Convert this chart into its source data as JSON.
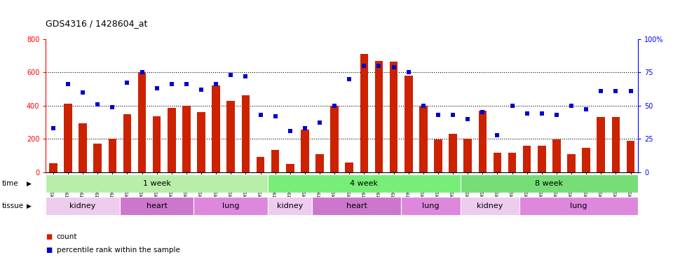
{
  "title": "GDS4316 / 1428604_at",
  "samples": [
    "GSM949115",
    "GSM949116",
    "GSM949117",
    "GSM949118",
    "GSM949119",
    "GSM949120",
    "GSM949121",
    "GSM949122",
    "GSM949123",
    "GSM949124",
    "GSM949125",
    "GSM949126",
    "GSM949127",
    "GSM949128",
    "GSM949129",
    "GSM949130",
    "GSM949131",
    "GSM949132",
    "GSM949133",
    "GSM949134",
    "GSM949135",
    "GSM949136",
    "GSM949137",
    "GSM949138",
    "GSM949139",
    "GSM949140",
    "GSM949141",
    "GSM949142",
    "GSM949143",
    "GSM949144",
    "GSM949145",
    "GSM949146",
    "GSM949147",
    "GSM949148",
    "GSM949149",
    "GSM949150",
    "GSM949151",
    "GSM949152",
    "GSM949153",
    "GSM949154"
  ],
  "counts": [
    55,
    410,
    295,
    170,
    200,
    350,
    600,
    335,
    385,
    400,
    360,
    520,
    430,
    460,
    90,
    135,
    50,
    255,
    110,
    400,
    60,
    710,
    670,
    665,
    580,
    400,
    195,
    230,
    200,
    370,
    115,
    115,
    160,
    160,
    195,
    110,
    145,
    330,
    330,
    190
  ],
  "percentiles": [
    33,
    66,
    60,
    51,
    49,
    67,
    75,
    63,
    66,
    66,
    62,
    66,
    73,
    72,
    43,
    42,
    31,
    33,
    37,
    50,
    70,
    80,
    80,
    79,
    75,
    50,
    43,
    43,
    40,
    45,
    28,
    50,
    44,
    44,
    43,
    50,
    47,
    61,
    61,
    61
  ],
  "bar_color": "#cc2200",
  "dot_color": "#0000cc",
  "ylim_left": [
    0,
    800
  ],
  "ylim_right": [
    0,
    100
  ],
  "yticks_left": [
    0,
    200,
    400,
    600,
    800
  ],
  "yticks_right": [
    0,
    25,
    50,
    75,
    100
  ],
  "ytick_right_labels": [
    "0",
    "25",
    "50",
    "75",
    "100%"
  ],
  "grid_values": [
    200,
    400,
    600
  ],
  "n_samples": 40,
  "time_groups": [
    {
      "label": "1 week",
      "start": 0,
      "end": 15,
      "color": "#b8eeaa"
    },
    {
      "label": "4 week",
      "start": 15,
      "end": 28,
      "color": "#77ee77"
    },
    {
      "label": "8 week",
      "start": 28,
      "end": 40,
      "color": "#77dd77"
    }
  ],
  "tissue_groups": [
    {
      "label": "kidney",
      "start": 0,
      "end": 5,
      "color": "#eeccee"
    },
    {
      "label": "heart",
      "start": 5,
      "end": 10,
      "color": "#cc77cc"
    },
    {
      "label": "lung",
      "start": 10,
      "end": 15,
      "color": "#dd88dd"
    },
    {
      "label": "kidney",
      "start": 15,
      "end": 18,
      "color": "#eeccee"
    },
    {
      "label": "heart",
      "start": 18,
      "end": 24,
      "color": "#cc77cc"
    },
    {
      "label": "lung",
      "start": 24,
      "end": 28,
      "color": "#dd88dd"
    },
    {
      "label": "kidney",
      "start": 28,
      "end": 32,
      "color": "#eeccee"
    },
    {
      "label": "lung",
      "start": 32,
      "end": 40,
      "color": "#dd88dd"
    }
  ],
  "plot_bg_color": "#ffffff",
  "fig_bg_color": "#ffffff",
  "legend": [
    {
      "label": "count",
      "color": "#cc2200"
    },
    {
      "label": "percentile rank within the sample",
      "color": "#0000cc"
    }
  ]
}
